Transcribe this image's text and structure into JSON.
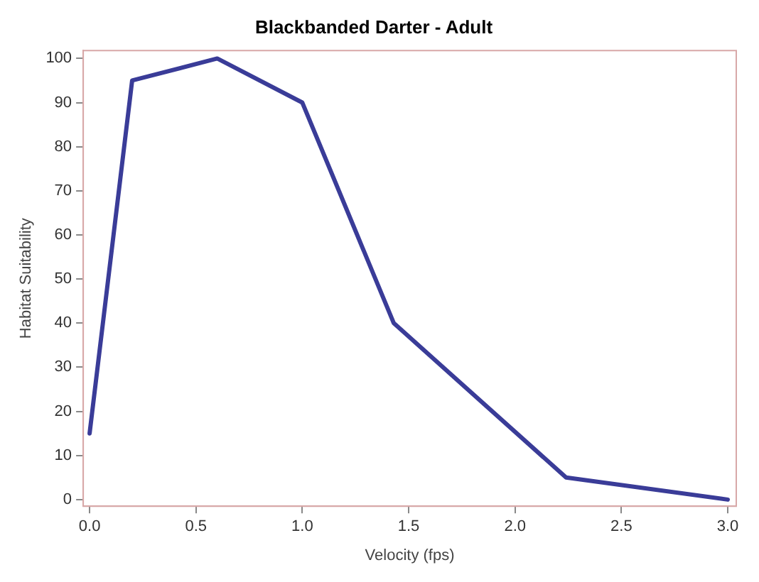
{
  "chart_data": {
    "type": "line",
    "title": "Blackbanded Darter - Adult",
    "xlabel": "Velocity (fps)",
    "ylabel": "Habitat Suitability",
    "x": [
      0,
      0.2,
      0.6,
      1.0,
      1.43,
      2.24,
      3.0
    ],
    "series": [
      {
        "color": "#3a3c98",
        "values": [
          15,
          95,
          100,
          90,
          40,
          5,
          0
        ]
      }
    ],
    "xlim": [
      -0.03,
      3.04
    ],
    "xticks": [
      {
        "value": 0,
        "label": "0.0"
      },
      0.5,
      {
        "value": 1,
        "label": "1.0"
      },
      1.5,
      {
        "value": 2,
        "label": "2.0"
      },
      2.5,
      {
        "value": 3,
        "label": "3.0"
      }
    ],
    "ylim": [
      -1.5,
      101.8
    ],
    "yticks": [
      0,
      10,
      20,
      30,
      40,
      50,
      60,
      70,
      80,
      90,
      100
    ],
    "grid": false,
    "legend": false,
    "marker": "none",
    "line_style": "solid"
  }
}
